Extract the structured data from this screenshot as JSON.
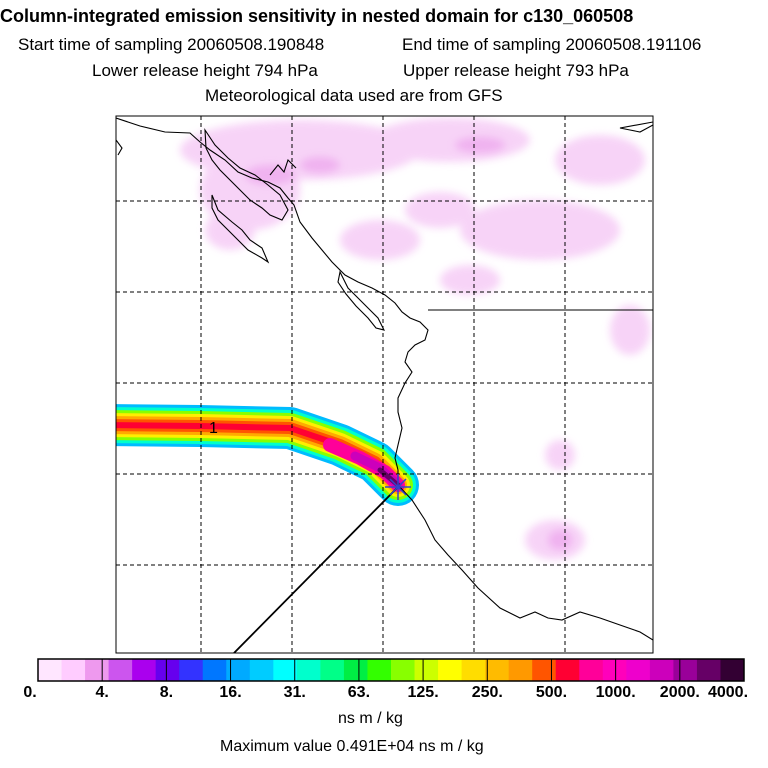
{
  "header": {
    "title": "Column-integrated emission sensitivity in nested domain for c130_060508",
    "start_time": "Start time of sampling 20060508.190848",
    "end_time": "End time of sampling 20060508.191106",
    "lower_height": "Lower release height  794 hPa",
    "upper_height": "Upper release height  793 hPa",
    "met_data": "Meteorological data used are from GFS"
  },
  "map": {
    "plume_label": "1",
    "colors": {
      "coast": "#000000",
      "grid": "#000000",
      "release_marker": "#3344cc"
    }
  },
  "legend": {
    "colors": [
      "#ffe6ff",
      "#ffccff",
      "#ee99ee",
      "#cc55ee",
      "#aa00ee",
      "#6600ee",
      "#3333ff",
      "#0077ff",
      "#00aaff",
      "#00ccff",
      "#00ffff",
      "#00ffcc",
      "#00ff88",
      "#00ee44",
      "#33ff00",
      "#88ff00",
      "#ccff00",
      "#ffff00",
      "#ffdd00",
      "#ffbb00",
      "#ff9900",
      "#ff5500",
      "#ff0033",
      "#ff0099",
      "#ff00bb",
      "#ee00cc",
      "#cc00bb",
      "#990099",
      "#660066",
      "#330033"
    ],
    "tick_labels": [
      "0.",
      "4.",
      "8.",
      "16.",
      "31.",
      "63.",
      "125.",
      "250.",
      "500.",
      "1000.",
      "2000.",
      "4000."
    ],
    "units": "ns m / kg"
  },
  "footer": {
    "max_value": "Maximum value  0.491E+04 ns m / kg"
  }
}
